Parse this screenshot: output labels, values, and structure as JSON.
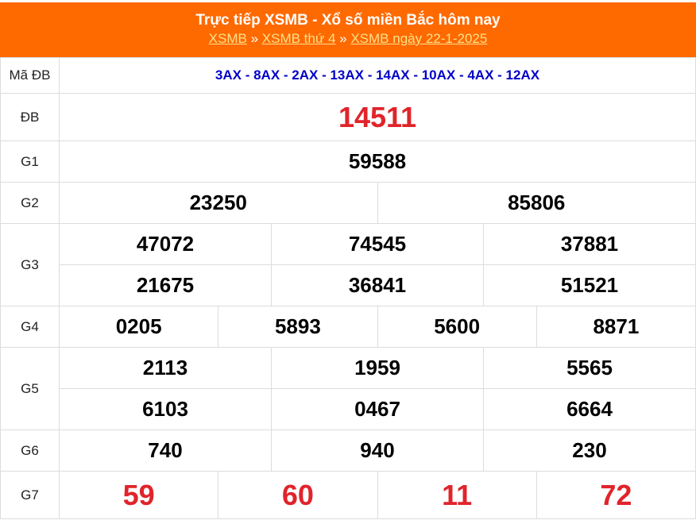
{
  "header": {
    "title": "Trực tiếp XSMB - Xổ số miền Bắc hôm nay",
    "breadcrumbs": [
      {
        "label": "XSMB"
      },
      {
        "label": "XSMB thứ 4"
      },
      {
        "label": "XSMB ngày 22-1-2025"
      }
    ],
    "separator": "»"
  },
  "colors": {
    "header_bg": "#ff6a00",
    "special_prize": "#e0242b",
    "code_text": "#0000c8"
  },
  "ma_db": {
    "label": "Mã ĐB",
    "codes": "3AX - 8AX - 2AX - 13AX - 14AX - 10AX - 4AX - 12AX"
  },
  "prizes": {
    "db": {
      "label": "ĐB",
      "numbers": [
        "14511"
      ]
    },
    "g1": {
      "label": "G1",
      "numbers": [
        "59588"
      ]
    },
    "g2": {
      "label": "G2",
      "numbers": [
        "23250",
        "85806"
      ]
    },
    "g3": {
      "label": "G3",
      "numbers": [
        "47072",
        "74545",
        "37881",
        "21675",
        "36841",
        "51521"
      ]
    },
    "g4": {
      "label": "G4",
      "numbers": [
        "0205",
        "5893",
        "5600",
        "8871"
      ]
    },
    "g5": {
      "label": "G5",
      "numbers": [
        "2113",
        "1959",
        "5565",
        "6103",
        "0467",
        "6664"
      ]
    },
    "g6": {
      "label": "G6",
      "numbers": [
        "740",
        "940",
        "230"
      ]
    },
    "g7": {
      "label": "G7",
      "numbers": [
        "59",
        "60",
        "11",
        "72"
      ]
    }
  }
}
